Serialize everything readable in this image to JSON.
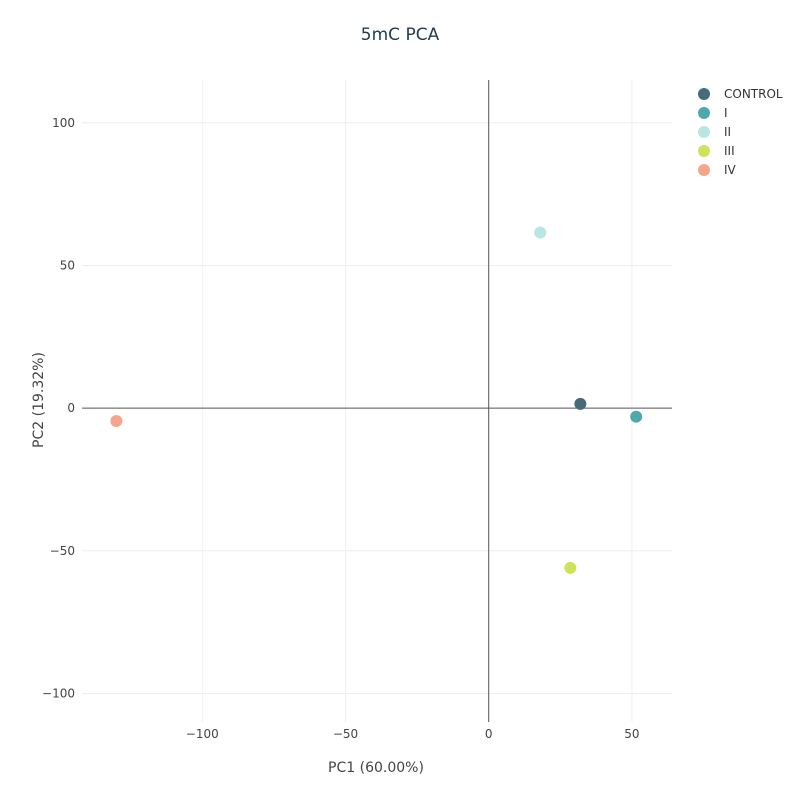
{
  "chart_data": {
    "type": "scatter",
    "title": "5mC PCA",
    "xlabel": "PC1 (60.00%)",
    "ylabel": "PC2 (19.32%)",
    "xlim": [
      -142,
      64
    ],
    "ylim": [
      -110,
      115
    ],
    "xticks": [
      -100,
      -50,
      0,
      50
    ],
    "yticks": [
      -100,
      -50,
      0,
      50,
      100
    ],
    "xtick_labels": [
      "−100",
      "−50",
      "0",
      "50"
    ],
    "ytick_labels": [
      "−100",
      "−50",
      "0",
      "50",
      "100"
    ],
    "grid": true,
    "legend_position": "top-right",
    "series": [
      {
        "name": "CONTROL",
        "color": "#456b7a",
        "x": [
          32
        ],
        "y": [
          1.5
        ]
      },
      {
        "name": "I",
        "color": "#4fa8ab",
        "x": [
          51.5
        ],
        "y": [
          -3
        ]
      },
      {
        "name": "II",
        "color": "#b7e6e3",
        "x": [
          18
        ],
        "y": [
          61.5
        ]
      },
      {
        "name": "III",
        "color": "#cfe35a",
        "x": [
          28.5
        ],
        "y": [
          -56
        ]
      },
      {
        "name": "IV",
        "color": "#f6a58c",
        "x": [
          -130
        ],
        "y": [
          -4.5
        ]
      }
    ]
  }
}
